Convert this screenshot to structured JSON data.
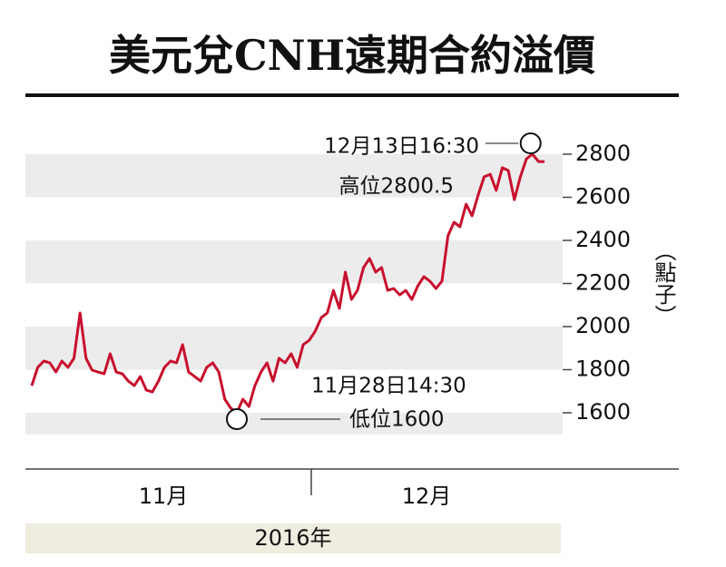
{
  "chart_data": {
    "type": "line",
    "title": "美元兌CNH遠期合約溢價",
    "y_label": "（點子）",
    "x_labels": [
      "11月",
      "12月"
    ],
    "year_label": "2016年",
    "annotations": {
      "high_time": "12月13日16:30",
      "high_text": "高位2800.5",
      "low_time": "11月28日14:30",
      "low_text": "低位1600"
    },
    "series": [
      {
        "name": "溢價",
        "color": "#c8102e",
        "values": [
          1726,
          1811,
          1840,
          1832,
          1789,
          1840,
          1811,
          1853,
          2063,
          1853,
          1798,
          1789,
          1781,
          1874,
          1789,
          1781,
          1747,
          1726,
          1768,
          1705,
          1697,
          1747,
          1811,
          1840,
          1832,
          1916,
          1789,
          1768,
          1747,
          1811,
          1832,
          1789,
          1663,
          1621,
          1600,
          1663,
          1629,
          1726,
          1789,
          1832,
          1747,
          1853,
          1832,
          1874,
          1811,
          1916,
          1937,
          1979,
          2042,
          2063,
          2168,
          2084,
          2253,
          2126,
          2168,
          2274,
          2316,
          2253,
          2274,
          2168,
          2177,
          2147,
          2168,
          2126,
          2189,
          2232,
          2211,
          2177,
          2211,
          2421,
          2484,
          2463,
          2568,
          2514,
          2611,
          2695,
          2707,
          2632,
          2737,
          2724,
          2589,
          2695,
          2779,
          2800.5,
          2766,
          2766
        ]
      }
    ],
    "ylim": [
      1500,
      3050
    ],
    "yticks": [
      1600,
      1800,
      2000,
      2200,
      2400,
      2600,
      2800
    ]
  }
}
